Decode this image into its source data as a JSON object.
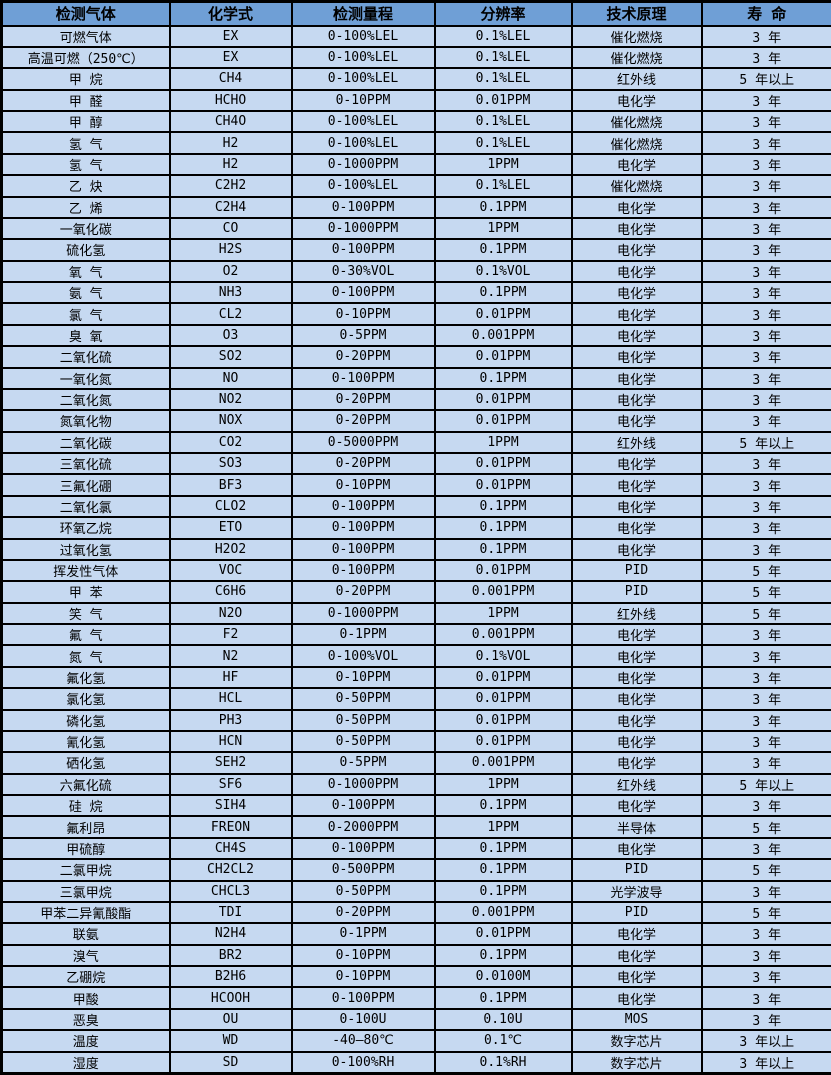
{
  "colors": {
    "header_bg": "#6f9fd6",
    "row_bg": "#c6d9f1",
    "border": "#000000",
    "text": "#000000"
  },
  "table": {
    "columns": [
      "检测气体",
      "化学式",
      "检测量程",
      "分辨率",
      "技术原理",
      "寿 命"
    ],
    "rows": [
      [
        "可燃气体",
        "EX",
        "0-100%LEL",
        "0.1%LEL",
        "催化燃烧",
        "3 年"
      ],
      [
        "高温可燃（250℃）",
        "EX",
        "0-100%LEL",
        "0.1%LEL",
        "催化燃烧",
        "3 年"
      ],
      [
        "甲 烷",
        "CH4",
        "0-100%LEL",
        "0.1%LEL",
        "红外线",
        "5 年以上"
      ],
      [
        "甲 醛",
        "HCHO",
        "0-10PPM",
        "0.01PPM",
        "电化学",
        "3 年"
      ],
      [
        "甲 醇",
        "CH4O",
        "0-100%LEL",
        "0.1%LEL",
        "催化燃烧",
        "3 年"
      ],
      [
        "氢 气",
        "H2",
        "0-100%LEL",
        "0.1%LEL",
        "催化燃烧",
        "3 年"
      ],
      [
        "氢 气",
        "H2",
        "0-1000PPM",
        "1PPM",
        "电化学",
        "3 年"
      ],
      [
        "乙 炔",
        "C2H2",
        "0-100%LEL",
        "0.1%LEL",
        "催化燃烧",
        "3 年"
      ],
      [
        "乙 烯",
        "C2H4",
        "0-100PPM",
        "0.1PPM",
        "电化学",
        "3 年"
      ],
      [
        "一氧化碳",
        "CO",
        "0-1000PPM",
        "1PPM",
        "电化学",
        "3 年"
      ],
      [
        "硫化氢",
        "H2S",
        "0-100PPM",
        "0.1PPM",
        "电化学",
        "3 年"
      ],
      [
        "氧 气",
        "O2",
        "0-30%VOL",
        "0.1%VOL",
        "电化学",
        "3 年"
      ],
      [
        "氨 气",
        "NH3",
        "0-100PPM",
        "0.1PPM",
        "电化学",
        "3 年"
      ],
      [
        "氯 气",
        "CL2",
        "0-10PPM",
        "0.01PPM",
        "电化学",
        "3 年"
      ],
      [
        "臭 氧",
        "O3",
        "0-5PPM",
        "0.001PPM",
        "电化学",
        "3 年"
      ],
      [
        "二氧化硫",
        "SO2",
        "0-20PPM",
        "0.01PPM",
        "电化学",
        "3 年"
      ],
      [
        "一氧化氮",
        "NO",
        "0-100PPM",
        "0.1PPM",
        "电化学",
        "3 年"
      ],
      [
        "二氧化氮",
        "NO2",
        "0-20PPM",
        "0.01PPM",
        "电化学",
        "3 年"
      ],
      [
        "氮氧化物",
        "NOX",
        "0-20PPM",
        "0.01PPM",
        "电化学",
        "3 年"
      ],
      [
        "二氧化碳",
        "CO2",
        "0-5000PPM",
        "1PPM",
        "红外线",
        "5 年以上"
      ],
      [
        "三氧化硫",
        "SO3",
        "0-20PPM",
        "0.01PPM",
        "电化学",
        "3 年"
      ],
      [
        "三氟化硼",
        "BF3",
        "0-10PPM",
        "0.01PPM",
        "电化学",
        "3 年"
      ],
      [
        "二氧化氯",
        "CLO2",
        "0-100PPM",
        "0.1PPM",
        "电化学",
        "3 年"
      ],
      [
        "环氧乙烷",
        "ETO",
        "0-100PPM",
        "0.1PPM",
        "电化学",
        "3 年"
      ],
      [
        "过氧化氢",
        "H2O2",
        "0-100PPM",
        "0.1PPM",
        "电化学",
        "3 年"
      ],
      [
        "挥发性气体",
        "VOC",
        "0-100PPM",
        "0.01PPM",
        "PID",
        "5 年"
      ],
      [
        "甲 苯",
        "C6H6",
        "0-20PPM",
        "0.001PPM",
        "PID",
        "5 年"
      ],
      [
        "笑 气",
        "N2O",
        "0-1000PPM",
        "1PPM",
        "红外线",
        "5 年"
      ],
      [
        "氟 气",
        "F2",
        "0-1PPM",
        "0.001PPM",
        "电化学",
        "3 年"
      ],
      [
        "氮 气",
        "N2",
        "0-100%VOL",
        "0.1%VOL",
        "电化学",
        "3 年"
      ],
      [
        "氟化氢",
        "HF",
        "0-10PPM",
        "0.01PPM",
        "电化学",
        "3 年"
      ],
      [
        "氯化氢",
        "HCL",
        "0-50PPM",
        "0.01PPM",
        "电化学",
        "3 年"
      ],
      [
        "磷化氢",
        "PH3",
        "0-50PPM",
        "0.01PPM",
        "电化学",
        "3 年"
      ],
      [
        "氰化氢",
        "HCN",
        "0-50PPM",
        "0.01PPM",
        "电化学",
        "3 年"
      ],
      [
        "硒化氢",
        "SEH2",
        "0-5PPM",
        "0.001PPM",
        "电化学",
        "3 年"
      ],
      [
        "六氟化硫",
        "SF6",
        "0-1000PPM",
        "1PPM",
        "红外线",
        "5 年以上"
      ],
      [
        "硅 烷",
        "SIH4",
        "0-100PPM",
        "0.1PPM",
        "电化学",
        "3 年"
      ],
      [
        "氟利昂",
        "FREON",
        "0-2000PPM",
        "1PPM",
        "半导体",
        "5 年"
      ],
      [
        "甲硫醇",
        "CH4S",
        "0-100PPM",
        "0.1PPM",
        "电化学",
        "3 年"
      ],
      [
        "二氯甲烷",
        "CH2CL2",
        "0-500PPM",
        "0.1PPM",
        "PID",
        "5 年"
      ],
      [
        "三氯甲烷",
        "CHCL3",
        "0-50PPM",
        "0.1PPM",
        "光学波导",
        "3 年"
      ],
      [
        "甲苯二异氰酸酯",
        "TDI",
        "0-20PPM",
        "0.001PPM",
        "PID",
        "5 年"
      ],
      [
        "联氨",
        "N2H4",
        "0-1PPM",
        "0.01PPM",
        "电化学",
        "3 年"
      ],
      [
        "溴气",
        "BR2",
        "0-10PPM",
        "0.1PPM",
        "电化学",
        "3 年"
      ],
      [
        "乙硼烷",
        "B2H6",
        "0-10PPM",
        "0.0100M",
        "电化学",
        "3 年"
      ],
      [
        "甲酸",
        "HCOOH",
        "0-100PPM",
        "0.1PPM",
        "电化学",
        "3 年"
      ],
      [
        "恶臭",
        "OU",
        "0-100U",
        "0.10U",
        "MOS",
        "3 年"
      ],
      [
        "温度",
        "WD",
        "-40—80℃",
        "0.1℃",
        "数字芯片",
        "3 年以上"
      ],
      [
        "湿度",
        "SD",
        "0-100%RH",
        "0.1%RH",
        "数字芯片",
        "3 年以上"
      ]
    ]
  }
}
